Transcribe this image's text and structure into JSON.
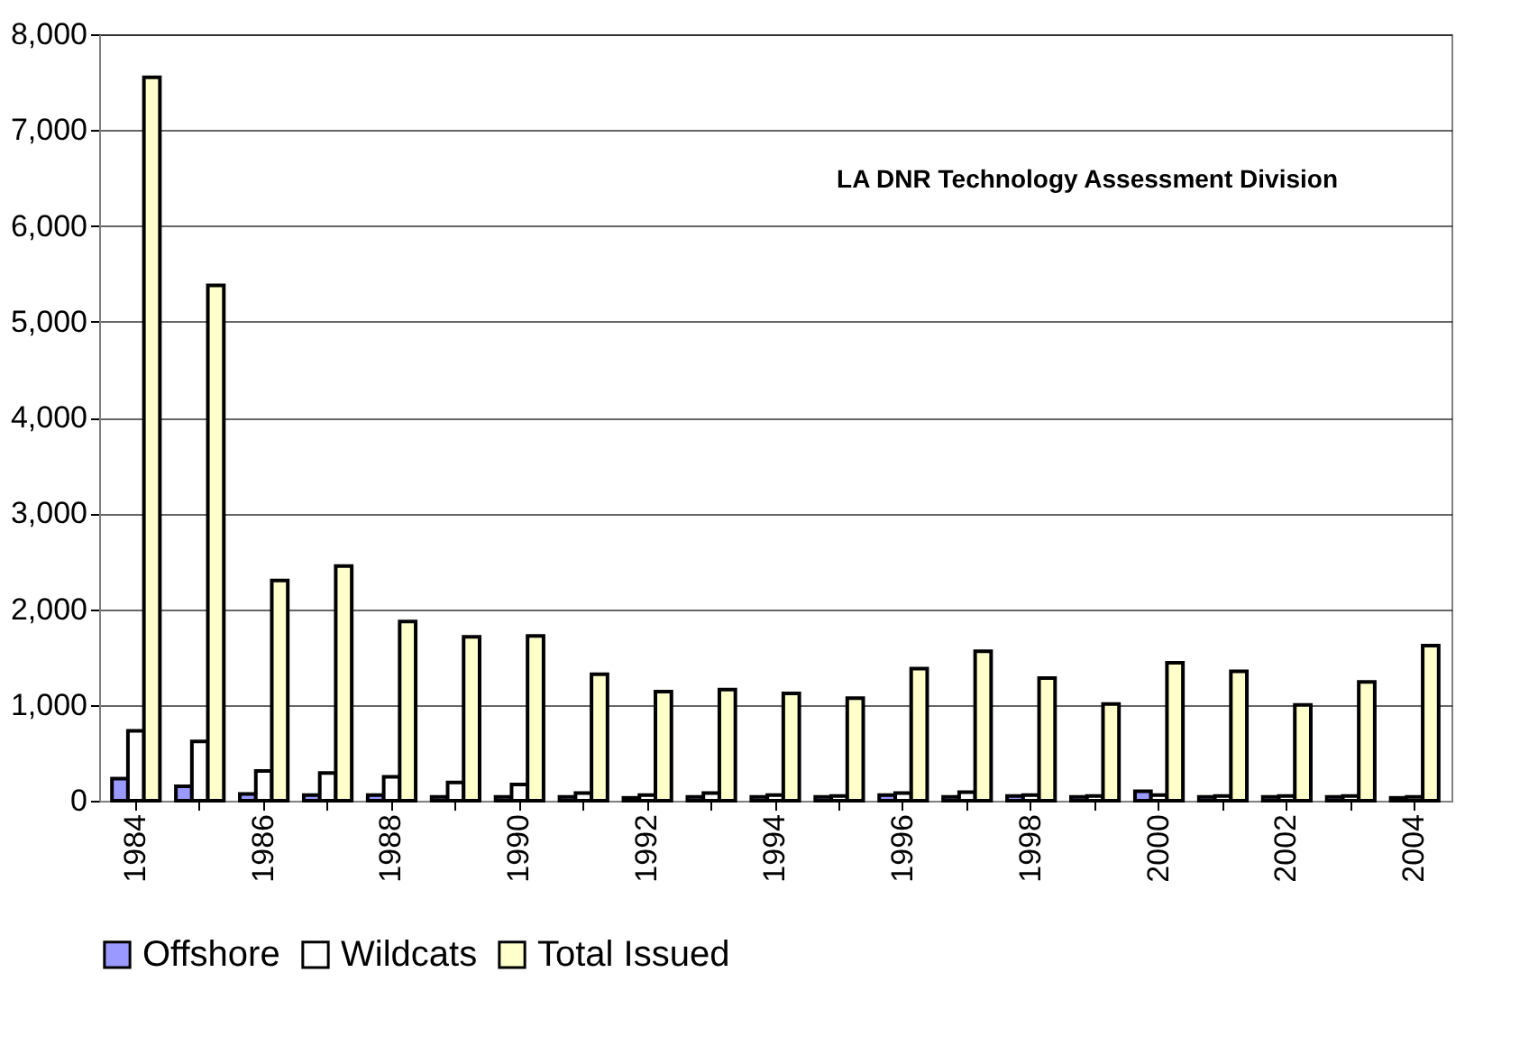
{
  "chart_data": {
    "type": "bar",
    "categories": [
      "1984",
      null,
      "1986",
      null,
      "1988",
      null,
      "1990",
      null,
      "1992",
      null,
      "1994",
      null,
      "1996",
      null,
      "1998",
      null,
      "2000",
      null,
      "2002",
      null,
      "2004"
    ],
    "series": [
      {
        "name": "Offshore",
        "color": "#9999ff",
        "values": [
          230,
          150,
          70,
          60,
          60,
          40,
          40,
          40,
          30,
          40,
          40,
          40,
          60,
          40,
          50,
          40,
          100,
          40,
          40,
          40,
          30
        ]
      },
      {
        "name": "Wildcats",
        "color": "#ffffff",
        "values": [
          730,
          620,
          310,
          290,
          250,
          190,
          170,
          80,
          60,
          80,
          60,
          50,
          80,
          90,
          60,
          50,
          60,
          50,
          50,
          50,
          40
        ]
      },
      {
        "name": "Total Issued",
        "color": "#ffffcc",
        "values": [
          7550,
          5380,
          2300,
          2450,
          1870,
          1710,
          1720,
          1320,
          1140,
          1160,
          1120,
          1070,
          1380,
          1560,
          1280,
          1010,
          1440,
          1350,
          1000,
          1240,
          1620
        ]
      }
    ],
    "ylim": [
      0,
      8000
    ],
    "yticks": [
      {
        "value": 0,
        "label": "0"
      },
      {
        "value": 1000,
        "label": "1,000"
      },
      {
        "value": 2000,
        "label": "2,000"
      },
      {
        "value": 3000,
        "label": "3,000"
      },
      {
        "value": 4000,
        "label": "4,000"
      },
      {
        "value": 5000,
        "label": "5,000"
      },
      {
        "value": 6000,
        "label": "6,000"
      },
      {
        "value": 7000,
        "label": "7,000"
      },
      {
        "value": 8000,
        "label": "8,000"
      }
    ],
    "annotations": [
      "LA DNR Technology Assessment Division"
    ],
    "grid": "y",
    "legend": "bottom"
  }
}
